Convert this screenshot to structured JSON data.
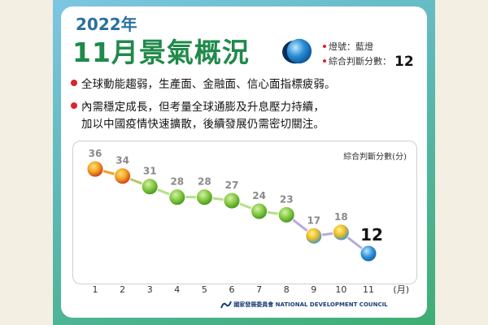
{
  "header": {
    "year": "2022年",
    "headline": "11月景氣概況",
    "light_label": "燈號：藍燈",
    "score_label": "綜合判斷分數：",
    "score_value": "12"
  },
  "bullets": [
    "全球動能趨弱，生產面、金融面、信心面指標疲弱。",
    "內需穩定成長，但考量全球通膨及升息壓力持續，",
    "加以中國疫情快速擴散，後續發展仍需密切關注。"
  ],
  "colors": {
    "red": "#d9232e",
    "yellow_red": "#f0a020",
    "green": "#7cc53a",
    "yellow_blue": "#f2c020",
    "blue": "#2a8fd6",
    "frame": "#5bb8b4"
  },
  "chart_data": {
    "type": "line",
    "title": "",
    "ylabel": "綜合判斷分數(分)",
    "xlabel": "(月)",
    "x": [
      1,
      2,
      3,
      4,
      5,
      6,
      7,
      8,
      9,
      10,
      11
    ],
    "values": [
      36,
      34,
      31,
      28,
      28,
      27,
      24,
      23,
      17,
      18,
      12
    ],
    "signals": [
      "yellow-red",
      "yellow-red",
      "green",
      "green",
      "green",
      "green",
      "green",
      "green",
      "yellow-blue",
      "yellow-blue",
      "blue"
    ],
    "ylim": [
      8,
      40
    ],
    "grid": false,
    "legend": "none"
  },
  "footer": {
    "logo_text": "國家發展委員會 NATIONAL DEVELOPMENT COUNCIL"
  }
}
